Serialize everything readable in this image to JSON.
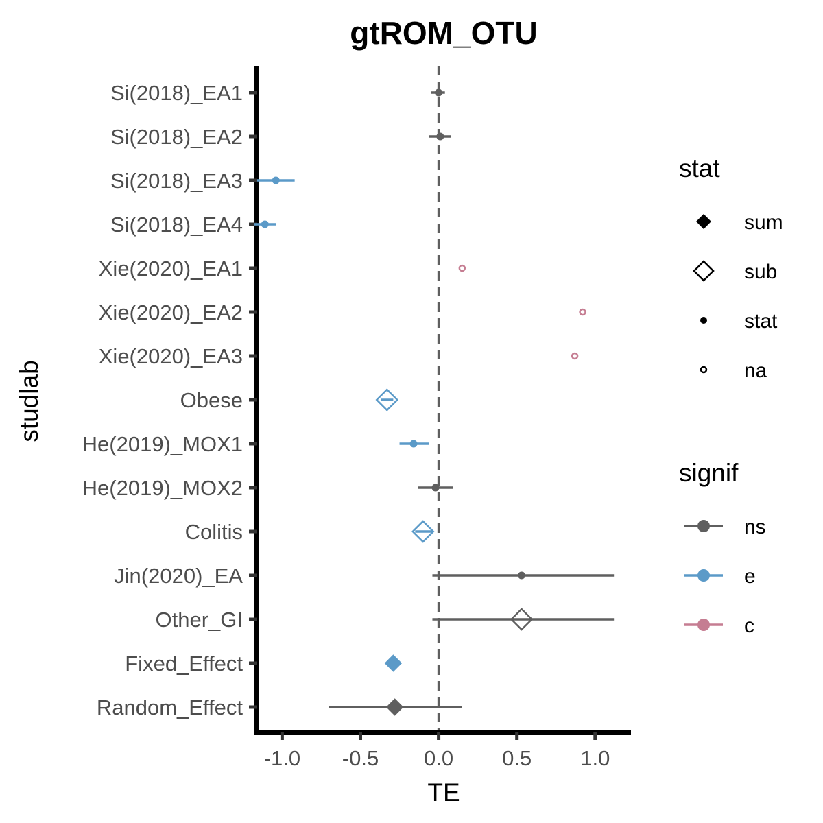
{
  "chart_data": {
    "type": "forest",
    "title": "gtROM_OTU",
    "xlabel": "TE",
    "ylabel": "studlab",
    "xlim": [
      -1.12,
      1.22
    ],
    "xticks": [
      -1.0,
      -0.5,
      0.0,
      0.5,
      1.0
    ],
    "xtick_labels": [
      "-1.0",
      "-0.5",
      "0.0",
      "0.5",
      "1.0"
    ],
    "reference_line": 0.0,
    "grid": false,
    "colors": {
      "ns": "#5f5f5f",
      "e": "#5b9ac8",
      "c": "#c57d92"
    },
    "rows": [
      {
        "studlab": "Si(2018)_EA1",
        "te": 0.0,
        "lower": -0.05,
        "upper": 0.04,
        "stat": "stat",
        "signif": "ns"
      },
      {
        "studlab": "Si(2018)_EA2",
        "te": 0.01,
        "lower": -0.06,
        "upper": 0.08,
        "stat": "stat",
        "signif": "ns"
      },
      {
        "studlab": "Si(2018)_EA3",
        "te": -1.04,
        "lower": -1.16,
        "upper": -0.92,
        "stat": "stat",
        "signif": "e"
      },
      {
        "studlab": "Si(2018)_EA4",
        "te": -1.11,
        "lower": -1.18,
        "upper": -1.04,
        "stat": "stat",
        "signif": "e"
      },
      {
        "studlab": "Xie(2020)_EA1",
        "te": 0.15,
        "lower": null,
        "upper": null,
        "stat": "na",
        "signif": "c"
      },
      {
        "studlab": "Xie(2020)_EA2",
        "te": 0.92,
        "lower": null,
        "upper": null,
        "stat": "na",
        "signif": "c"
      },
      {
        "studlab": "Xie(2020)_EA3",
        "te": 0.87,
        "lower": null,
        "upper": null,
        "stat": "na",
        "signif": "c"
      },
      {
        "studlab": "Obese",
        "te": -0.33,
        "lower": -0.37,
        "upper": -0.29,
        "stat": "sub",
        "signif": "e"
      },
      {
        "studlab": "He(2019)_MOX1",
        "te": -0.16,
        "lower": -0.25,
        "upper": -0.06,
        "stat": "stat",
        "signif": "e"
      },
      {
        "studlab": "He(2019)_MOX2",
        "te": -0.02,
        "lower": -0.13,
        "upper": 0.09,
        "stat": "stat",
        "signif": "ns"
      },
      {
        "studlab": "Colitis",
        "te": -0.1,
        "lower": -0.15,
        "upper": -0.04,
        "stat": "sub",
        "signif": "e"
      },
      {
        "studlab": "Jin(2020)_EA",
        "te": 0.53,
        "lower": -0.04,
        "upper": 1.12,
        "stat": "stat",
        "signif": "ns"
      },
      {
        "studlab": "Other_GI",
        "te": 0.53,
        "lower": -0.04,
        "upper": 1.12,
        "stat": "sub",
        "signif": "ns"
      },
      {
        "studlab": "Fixed_Effect",
        "te": -0.29,
        "lower": null,
        "upper": null,
        "stat": "sum",
        "signif": "e"
      },
      {
        "studlab": "Random_Effect",
        "te": -0.28,
        "lower": -0.7,
        "upper": 0.15,
        "stat": "sum",
        "signif": "ns"
      }
    ],
    "legends": [
      {
        "title": "stat",
        "entries": [
          {
            "label": "sum",
            "shape": "filled-diamond"
          },
          {
            "label": "sub",
            "shape": "open-diamond"
          },
          {
            "label": "stat",
            "shape": "dot"
          },
          {
            "label": "na",
            "shape": "open-circle"
          }
        ]
      },
      {
        "title": "signif",
        "entries": [
          {
            "label": "ns",
            "color": "#5f5f5f"
          },
          {
            "label": "e",
            "color": "#5b9ac8"
          },
          {
            "label": "c",
            "color": "#c57d92"
          }
        ]
      }
    ],
    "legend_position": "right"
  }
}
